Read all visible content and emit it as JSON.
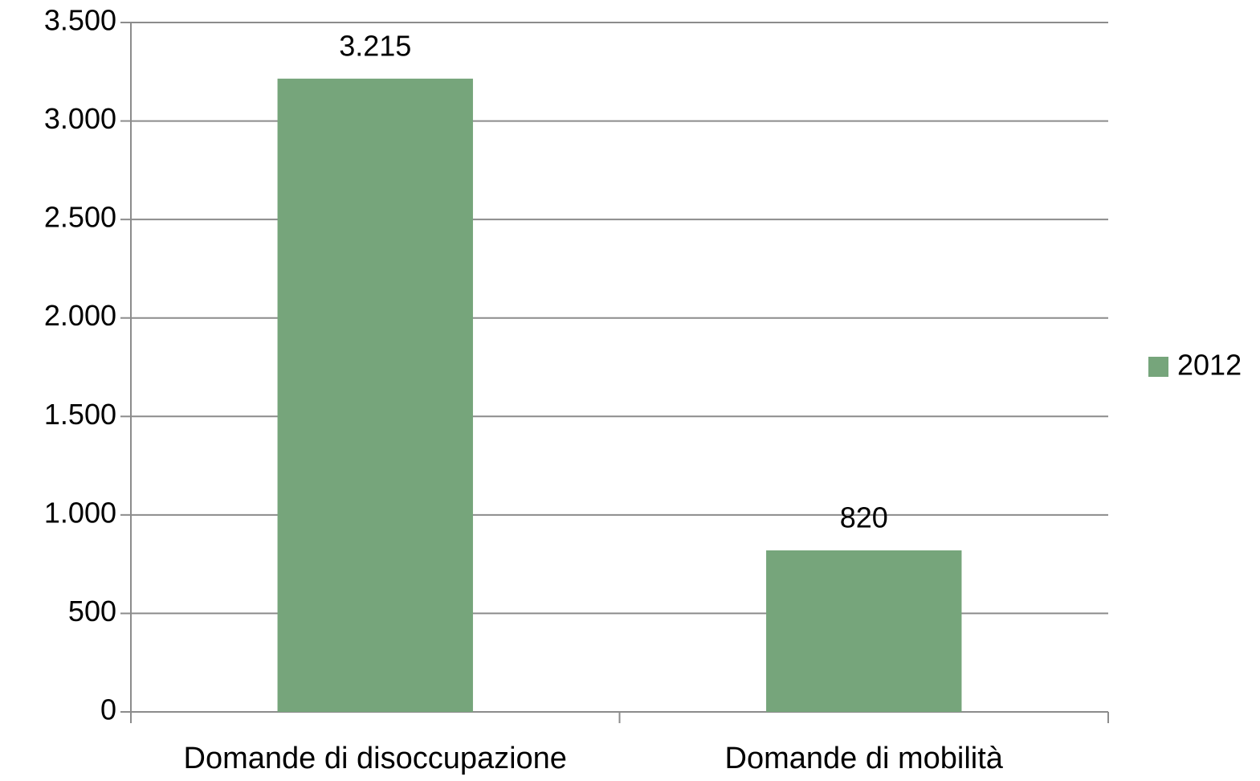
{
  "chart_data": {
    "type": "bar",
    "categories": [
      "Domande di disoccupazione",
      "Domande di mobilità"
    ],
    "series": [
      {
        "name": "2012",
        "color": "#76a57b",
        "values": [
          3215,
          820
        ],
        "value_labels": [
          "3.215",
          "820"
        ]
      }
    ],
    "ylim": [
      0,
      3500
    ],
    "yticks": [
      0,
      500,
      {
        "value": 1000,
        "label": "1.000"
      },
      {
        "value": 1500,
        "label": "1.500"
      },
      {
        "value": 2000,
        "label": "2.000"
      },
      {
        "value": 2500,
        "label": "2.500"
      },
      {
        "value": 3000,
        "label": "3.000"
      },
      {
        "value": 3500,
        "label": "3.500"
      }
    ],
    "grid": true,
    "legend": "right"
  }
}
